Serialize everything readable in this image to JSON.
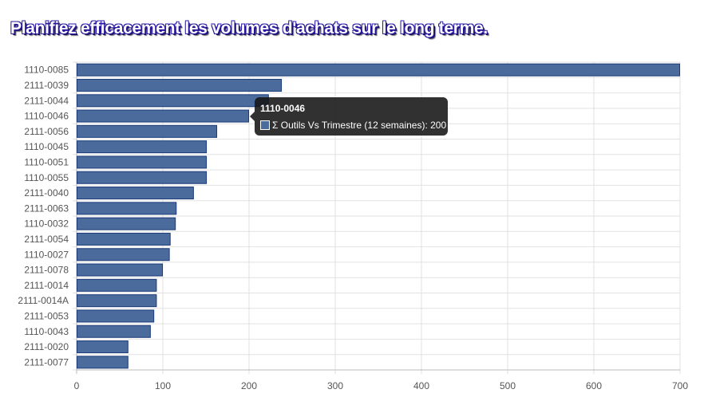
{
  "title": "Planifiez efficacement les volumes d'achats sur le long terme.",
  "colors": {
    "bar": "#4a6b9c",
    "bar_border": "#1a3a78"
  },
  "chart_data": {
    "type": "bar",
    "orientation": "horizontal",
    "categories": [
      "1110-0085",
      "2111-0039",
      "2111-0044",
      "1110-0046",
      "2111-0056",
      "1110-0045",
      "1110-0051",
      "1110-0055",
      "2111-0040",
      "2111-0063",
      "1110-0032",
      "2111-0054",
      "1110-0027",
      "2111-0078",
      "2111-0014",
      "2111-0014A",
      "2111-0053",
      "1110-0043",
      "2111-0020",
      "2111-0077"
    ],
    "series": [
      {
        "name": "Σ Outils Vs Trimestre (12 semaines)",
        "values": [
          700,
          238,
          223,
          200,
          163,
          151,
          151,
          151,
          136,
          116,
          115,
          109,
          108,
          100,
          93,
          93,
          90,
          86,
          60,
          60
        ]
      }
    ],
    "xlim": [
      0,
      700
    ],
    "xticks": [
      0,
      100,
      200,
      300,
      400,
      500,
      600,
      700
    ],
    "grid": true,
    "legend": "none"
  },
  "tooltip": {
    "title": "1110-0046",
    "label": "Σ Outils Vs Trimestre (12 semaines): 200"
  }
}
